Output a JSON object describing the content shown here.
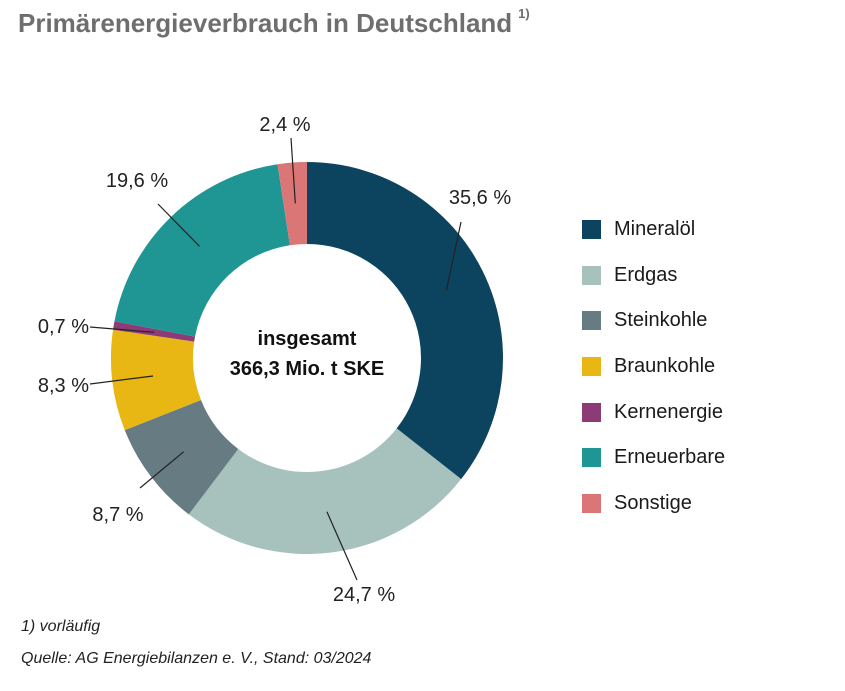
{
  "title": "Primärenergieverbrauch in Deutschland",
  "title_footnote_marker": "1)",
  "chart_data": {
    "type": "pie",
    "donut": true,
    "center_label": [
      "insgesamt",
      "366,3 Mio. t SKE"
    ],
    "series": [
      {
        "name": "Mineralöl",
        "value": 35.6,
        "label": "35,6 %",
        "color": "#0c4460"
      },
      {
        "name": "Erdgas",
        "value": 24.7,
        "label": "24,7 %",
        "color": "#a7c1bd"
      },
      {
        "name": "Steinkohle",
        "value": 8.7,
        "label": "8,7 %",
        "color": "#677b82"
      },
      {
        "name": "Braunkohle",
        "value": 8.3,
        "label": "8,3 %",
        "color": "#e8b714"
      },
      {
        "name": "Kernenergie",
        "value": 0.7,
        "label": "0,7 %",
        "color": "#8c3b76"
      },
      {
        "name": "Erneuerbare",
        "value": 19.6,
        "label": "19,6 %",
        "color": "#1f9693"
      },
      {
        "name": "Sonstige",
        "value": 2.4,
        "label": "2,4 %",
        "color": "#db7677"
      }
    ],
    "legend_position": "right"
  },
  "footnote": "1) vorläufig",
  "source": "Quelle: AG Energiebilanzen e. V., Stand: 03/2024"
}
